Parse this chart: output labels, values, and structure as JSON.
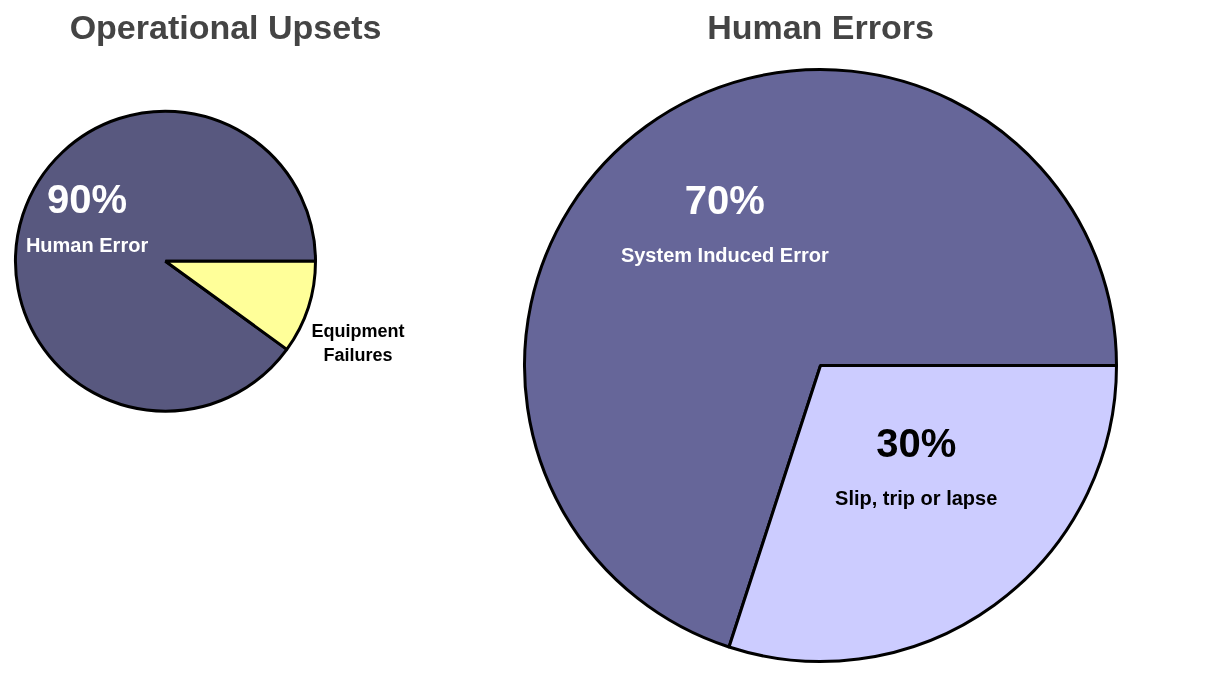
{
  "chart_data": [
    {
      "type": "pie",
      "title": "Operational Upsets",
      "categories": [
        "Human Error",
        "Equipment Failures"
      ],
      "values": [
        90,
        10
      ],
      "colors": [
        "#58587f",
        "#ffff99"
      ],
      "value_labels": [
        "90%",
        null
      ]
    },
    {
      "type": "pie",
      "title": "Human Errors",
      "categories": [
        "System Induced Error",
        "Slip, trip or lapse"
      ],
      "values": [
        70,
        30
      ],
      "colors": [
        "#666699",
        "#ccccff"
      ],
      "value_labels": [
        "70%",
        "30%"
      ]
    }
  ]
}
